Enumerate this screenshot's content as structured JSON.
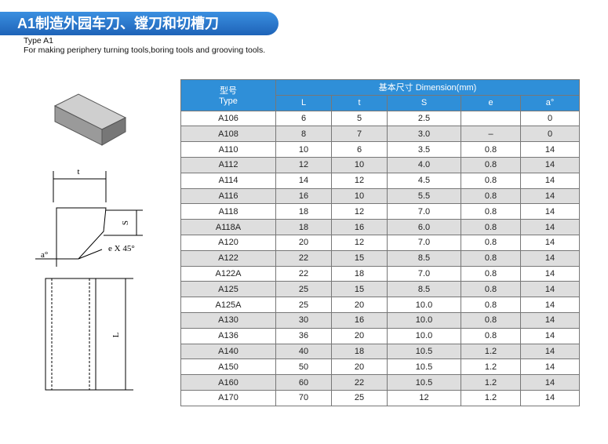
{
  "header": {
    "title": "A1制造外园车刀、镗刀和切槽刀",
    "subtitle": "Type A1",
    "description": "For making periphery turning tools,boring tools and grooving tools."
  },
  "drawing": {
    "labels": [
      "t",
      "S",
      "e X 45°",
      "a°",
      "L"
    ]
  },
  "table": {
    "type_header": [
      "型号",
      "Type"
    ],
    "group_header": "基本尺寸 Dimension(mm)",
    "columns": [
      "L",
      "t",
      "S",
      "e",
      "a°"
    ],
    "rows": [
      [
        "A106",
        "6",
        "5",
        "2.5",
        null,
        "0"
      ],
      [
        "A108",
        "8",
        "7",
        "3.0",
        "–",
        "0"
      ],
      [
        "A110",
        "10",
        "6",
        "3.5",
        "0.8",
        "14"
      ],
      [
        "A112",
        "12",
        "10",
        "4.0",
        "0.8",
        "14"
      ],
      [
        "A114",
        "14",
        "12",
        "4.5",
        "0.8",
        "14"
      ],
      [
        "A116",
        "16",
        "10",
        "5.5",
        "0.8",
        "14"
      ],
      [
        "A118",
        "18",
        "12",
        "7.0",
        "0.8",
        "14"
      ],
      [
        "A118A",
        "18",
        "16",
        "6.0",
        "0.8",
        "14"
      ],
      [
        "A120",
        "20",
        "12",
        "7.0",
        "0.8",
        "14"
      ],
      [
        "A122",
        "22",
        "15",
        "8.5",
        "0.8",
        "14"
      ],
      [
        "A122A",
        "22",
        "18",
        "7.0",
        "0.8",
        "14"
      ],
      [
        "A125",
        "25",
        "15",
        "8.5",
        "0.8",
        "14"
      ],
      [
        "A125A",
        "25",
        "20",
        "10.0",
        "0.8",
        "14"
      ],
      [
        "A130",
        "30",
        "16",
        "10.0",
        "0.8",
        "14"
      ],
      [
        "A136",
        "36",
        "20",
        "10.0",
        "0.8",
        "14"
      ],
      [
        "A140",
        "40",
        "18",
        "10.5",
        "1.2",
        "14"
      ],
      [
        "A150",
        "50",
        "20",
        "10.5",
        "1.2",
        "14"
      ],
      [
        "A160",
        "60",
        "22",
        "10.5",
        "1.2",
        "14"
      ],
      [
        "A170",
        "70",
        "25",
        "12",
        "1.2",
        "14"
      ]
    ]
  }
}
